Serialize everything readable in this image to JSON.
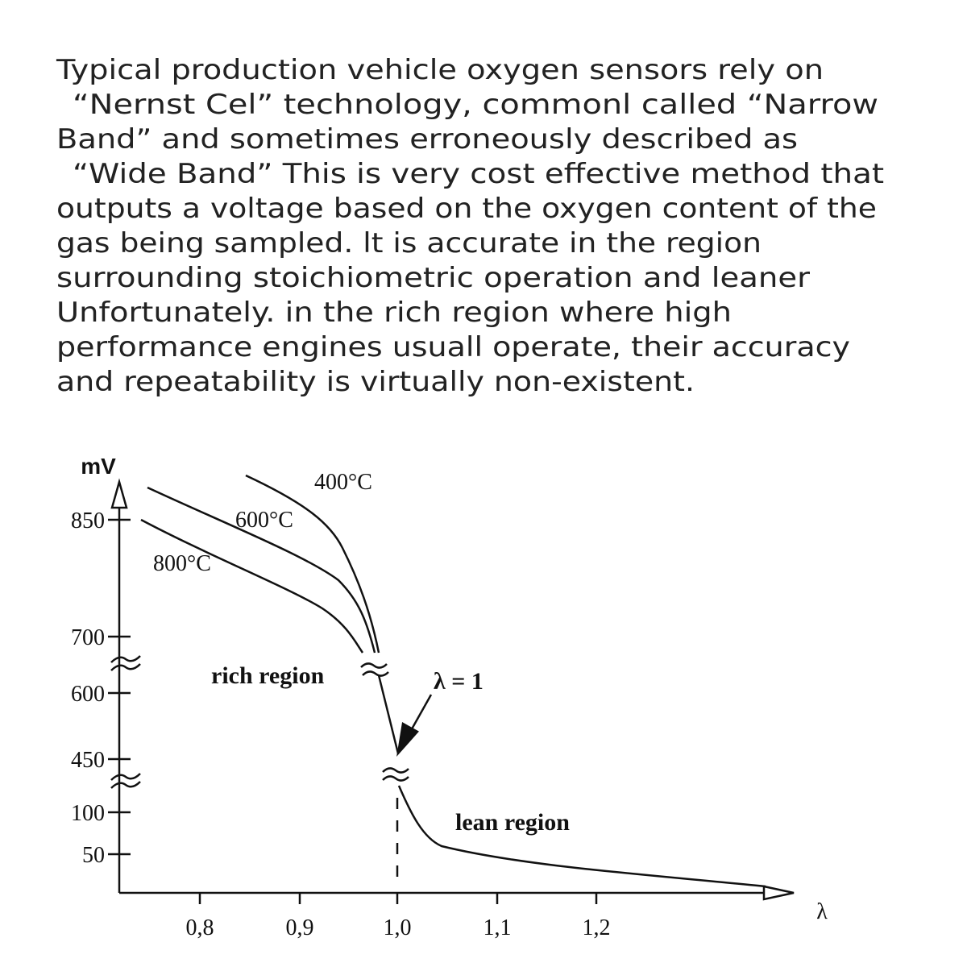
{
  "paragraph": {
    "lines": [
      "Typical production vehicle oxygen sensors rely on",
      "“Nernst Cel”  technology, commonl called  “Narrow",
      "Band”  and sometimes erroneously described as",
      "“Wide Band”  This is  very cost effective method that",
      "outputs a voltage based on the oxygen content of the",
      "gas being sampled. lt is accurate in the region",
      "surrounding stoichiometric operation and leaner",
      "Unfortunately. in the rich region where high",
      "performance engines usuall operate, their accuracy",
      "and repeatability is virtually non-existent."
    ]
  },
  "diagram": {
    "y_axis_label": "mV",
    "x_axis_label": "λ",
    "y_ticks": [
      "850",
      "700",
      "600",
      "450",
      "100",
      "50"
    ],
    "x_ticks": [
      "0,8",
      "0,9",
      "1,0",
      "1,1",
      "1,2"
    ],
    "curve_labels": [
      "400°C",
      "600°C",
      "800°C"
    ],
    "rich_label": "rich region",
    "lean_label": "lean region",
    "lambda_label": "λ = 1"
  }
}
